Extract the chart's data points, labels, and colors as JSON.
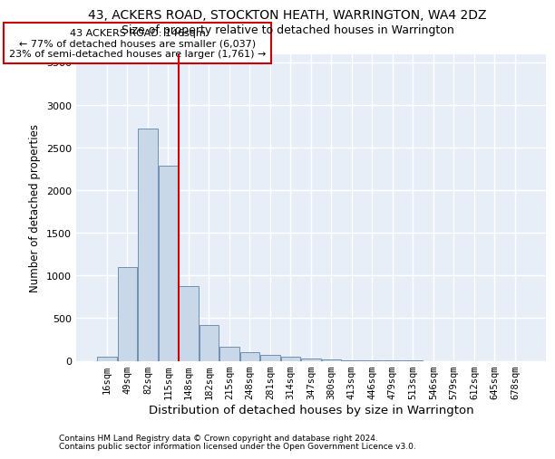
{
  "title1": "43, ACKERS ROAD, STOCKTON HEATH, WARRINGTON, WA4 2DZ",
  "title2": "Size of property relative to detached houses in Warrington",
  "xlabel": "Distribution of detached houses by size in Warrington",
  "ylabel": "Number of detached properties",
  "footer1": "Contains HM Land Registry data © Crown copyright and database right 2024.",
  "footer2": "Contains public sector information licensed under the Open Government Licence v3.0.",
  "property_label": "43 ACKERS ROAD: 146sqm",
  "annotation_line1": "← 77% of detached houses are smaller (6,037)",
  "annotation_line2": "23% of semi-detached houses are larger (1,761) →",
  "bar_color": "#c8d8e8",
  "bar_edge_color": "#7090b0",
  "vline_color": "#cc0000",
  "annotation_box_color": "#cc0000",
  "background_color": "#e8eef8",
  "categories": [
    "16sqm",
    "49sqm",
    "82sqm",
    "115sqm",
    "148sqm",
    "182sqm",
    "215sqm",
    "248sqm",
    "281sqm",
    "314sqm",
    "347sqm",
    "380sqm",
    "413sqm",
    "446sqm",
    "479sqm",
    "513sqm",
    "546sqm",
    "579sqm",
    "612sqm",
    "645sqm",
    "678sqm"
  ],
  "values": [
    50,
    1100,
    2720,
    2290,
    880,
    420,
    165,
    100,
    65,
    50,
    30,
    15,
    8,
    4,
    2,
    1,
    0,
    0,
    0,
    0,
    0
  ],
  "ylim": [
    0,
    3600
  ],
  "yticks": [
    0,
    500,
    1000,
    1500,
    2000,
    2500,
    3000,
    3500
  ],
  "vline_x_index": 4,
  "title1_fontsize": 10,
  "title2_fontsize": 9,
  "ylabel_fontsize": 8.5,
  "xlabel_fontsize": 9.5,
  "tick_fontsize": 7.5,
  "footer_fontsize": 6.5
}
